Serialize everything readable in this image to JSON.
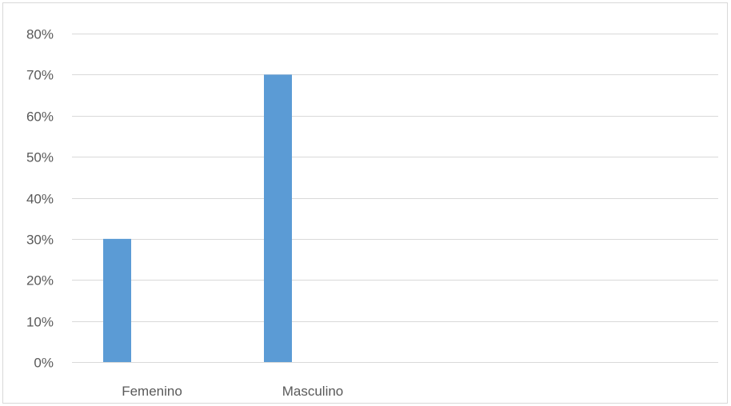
{
  "chart_data": {
    "type": "bar",
    "title": "",
    "xlabel": "",
    "ylabel": "",
    "categories": [
      "Femenino",
      "Masculino"
    ],
    "values": [
      30,
      70
    ],
    "ylim": [
      0,
      80
    ],
    "yticks": [
      0,
      10,
      20,
      30,
      40,
      50,
      60,
      70,
      80
    ],
    "ytick_labels": [
      "0%",
      "10%",
      "20%",
      "30%",
      "40%",
      "50%",
      "60%",
      "70%",
      "80%"
    ],
    "grid": true,
    "legend": "none",
    "bar_color": "#5B9BD5",
    "grid_color": "#d9d9d9"
  }
}
